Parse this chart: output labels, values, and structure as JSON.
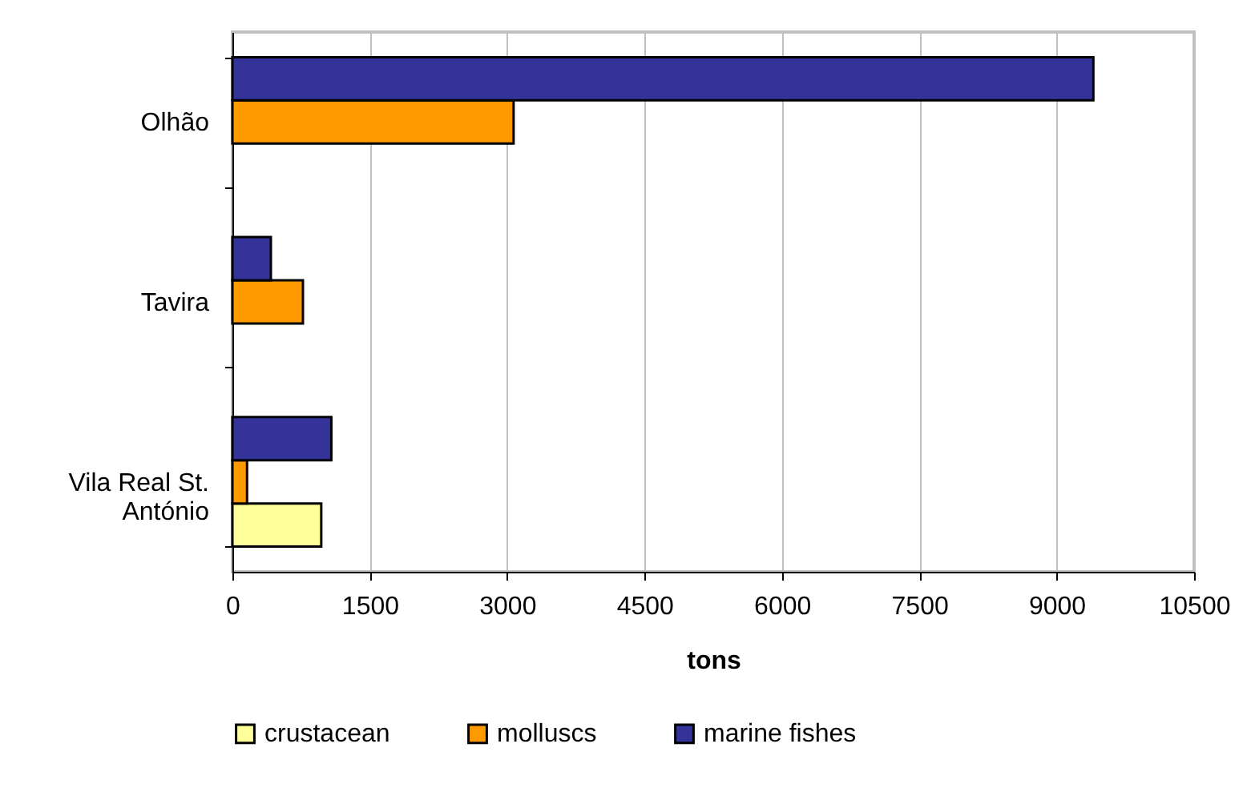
{
  "chart_data": {
    "type": "bar",
    "orientation": "horizontal",
    "xlabel": "tons",
    "categories": [
      "Olhão",
      "Tavira",
      "Vila Real St. António"
    ],
    "series": [
      {
        "name": "crustacean",
        "color": "#ffff99",
        "values": [
          null,
          null,
          970
        ]
      },
      {
        "name": "molluscs",
        "color": "#ff9900",
        "values": [
          3070,
          770,
          160
        ]
      },
      {
        "name": "marine fishes",
        "color": "#333399",
        "values": [
          9400,
          420,
          1080
        ]
      }
    ],
    "xlim": [
      0,
      10500
    ],
    "xticks": [
      0,
      1500,
      3000,
      4500,
      6000,
      7500,
      9000,
      10500
    ],
    "grid": "x",
    "legend": "bottom"
  }
}
